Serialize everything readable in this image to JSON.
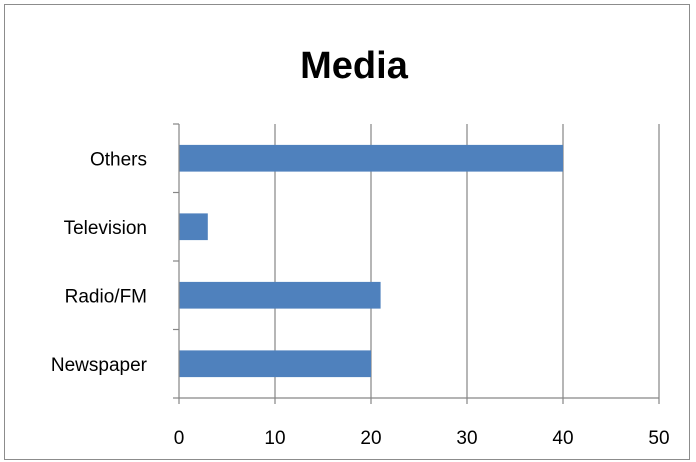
{
  "chart_data": {
    "type": "bar",
    "orientation": "horizontal",
    "title": "Media",
    "categories": [
      "Newspaper",
      "Radio/FM",
      "Television",
      "Others"
    ],
    "values": [
      20,
      21,
      3,
      40
    ],
    "xlim": [
      0,
      50
    ],
    "xticks": [
      0,
      10,
      20,
      30,
      40,
      50
    ],
    "xlabel": "",
    "ylabel": "",
    "grid": "vertical",
    "legend": "none",
    "bar_color": "#4f81bd",
    "gridline_color": "#868686"
  }
}
